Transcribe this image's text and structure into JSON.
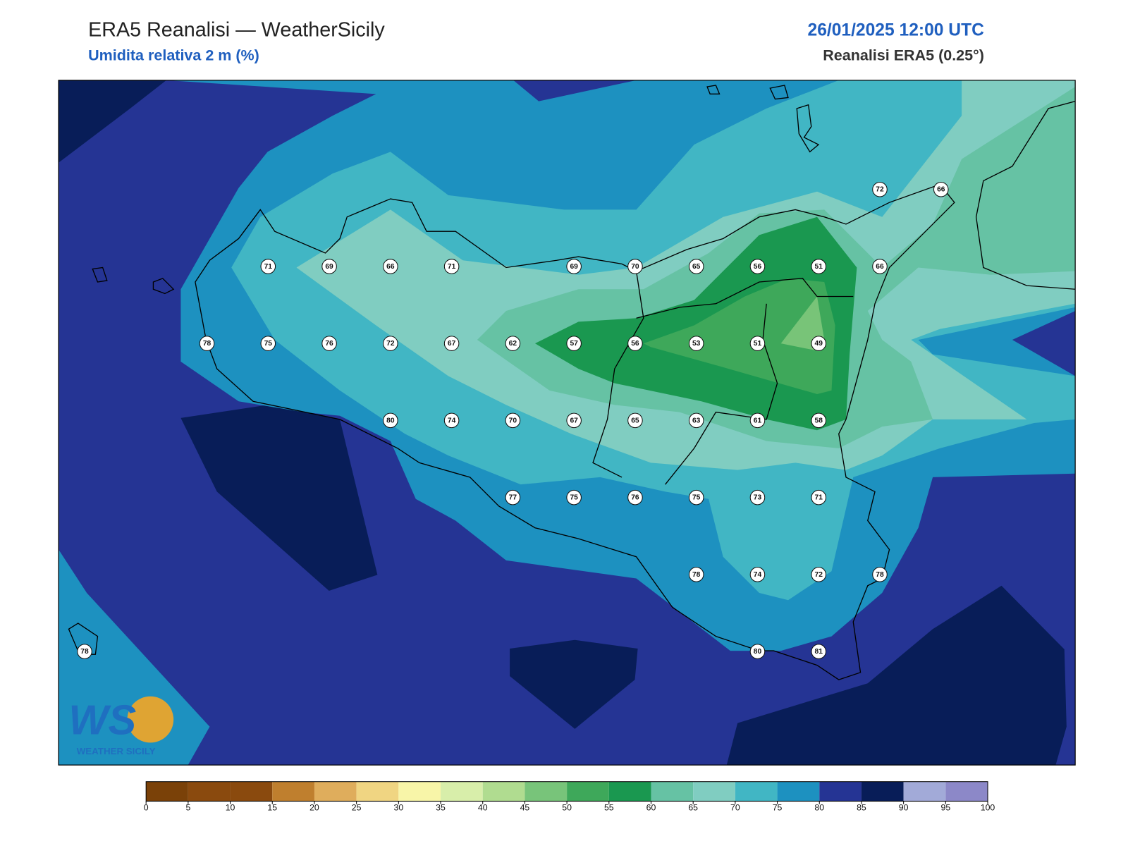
{
  "header": {
    "title": "ERA5 Reanalisi — WeatherSicily",
    "subtitle": "Umidita relativa 2 m (%)",
    "datetime": "26/01/2025 12:00 UTC",
    "source": "Reanalisi ERA5 (0.25°)"
  },
  "stations": {
    "rows": [
      [
        null,
        null,
        null,
        null,
        null,
        null,
        null,
        null,
        null,
        null,
        null,
        null,
        null,
        72,
        66
      ],
      [
        null,
        null,
        null,
        71,
        69,
        66,
        71,
        null,
        69,
        70,
        65,
        56,
        51,
        66,
        null
      ],
      [
        null,
        null,
        78,
        75,
        76,
        72,
        67,
        62,
        57,
        56,
        53,
        51,
        49,
        null,
        null
      ],
      [
        null,
        null,
        null,
        null,
        null,
        80,
        74,
        70,
        67,
        65,
        63,
        61,
        58,
        null,
        null
      ],
      [
        null,
        null,
        null,
        null,
        null,
        null,
        null,
        77,
        75,
        76,
        75,
        73,
        71,
        null,
        null
      ],
      [
        null,
        null,
        null,
        null,
        null,
        null,
        null,
        null,
        null,
        null,
        78,
        74,
        72,
        78,
        null
      ],
      [
        78,
        null,
        null,
        null,
        null,
        null,
        null,
        null,
        null,
        null,
        null,
        80,
        81,
        null,
        null
      ]
    ]
  },
  "colorbar": {
    "ticks": [
      0,
      5,
      10,
      15,
      20,
      25,
      30,
      35,
      40,
      45,
      50,
      55,
      60,
      65,
      70,
      75,
      80,
      85,
      90,
      95,
      100
    ],
    "colors": [
      "#7a4108",
      "#8a4a0e",
      "#8a4a0e",
      "#bf7f2e",
      "#dfad5c",
      "#f0d582",
      "#f8f5a8",
      "#d8eeaa",
      "#b0dc90",
      "#78c47a",
      "#3ea85a",
      "#1a9850",
      "#66c2a4",
      "#80cdc1",
      "#41b6c4",
      "#1d91c0",
      "#253494",
      "#081d58",
      "#a2aad8",
      "#8c88c8"
    ]
  },
  "logo": {
    "mark": "WS",
    "text": "WEATHER SICILY"
  }
}
